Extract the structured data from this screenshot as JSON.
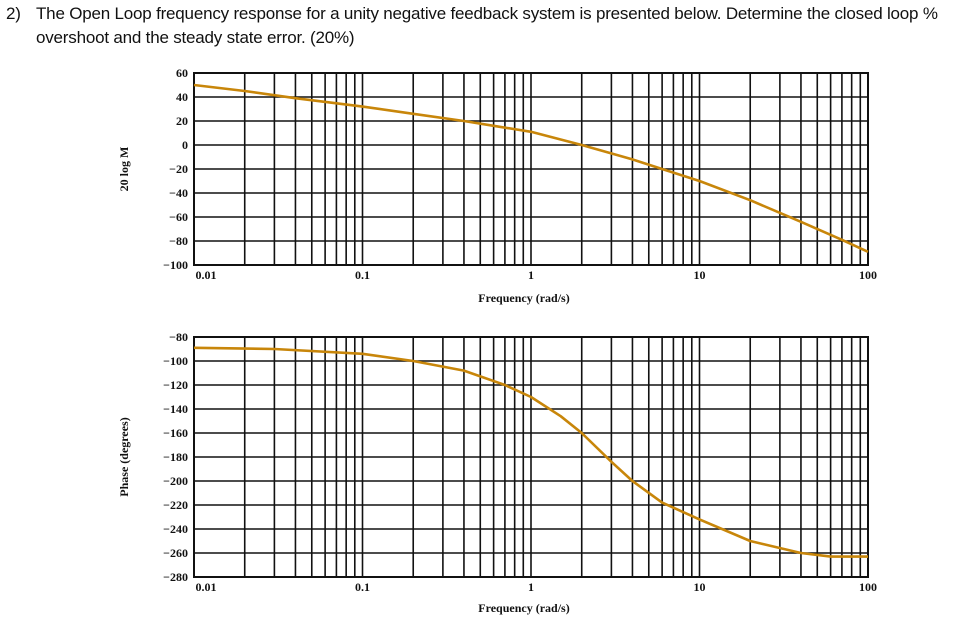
{
  "question": {
    "number": "2)",
    "text": "The Open Loop frequency response for a unity negative feedback system is presented below. Determine the closed loop % overshoot and the steady state error. (20%)"
  },
  "chart_data": [
    {
      "type": "line",
      "xscale": "log",
      "xlabel": "Frequency (rad/s)",
      "ylabel": "20 log M",
      "xlim": [
        0.01,
        100
      ],
      "ylim": [
        -100,
        60
      ],
      "xticks": [
        "0.01",
        "0.1",
        "1",
        "10",
        "100"
      ],
      "yticks": [
        "60",
        "40",
        "20",
        "0",
        "−20",
        "−40",
        "−60",
        "−80",
        "−100"
      ],
      "grid": true,
      "line_color": "#c8860a",
      "x": [
        0.01,
        0.02,
        0.04,
        0.1,
        0.2,
        0.4,
        0.6,
        1,
        2,
        4,
        6,
        10,
        20,
        40,
        70,
        100
      ],
      "y": [
        50,
        45,
        39,
        32,
        26,
        20,
        16,
        11,
        0,
        -12,
        -20,
        -30,
        -46,
        -64,
        -79,
        -89
      ]
    },
    {
      "type": "line",
      "xscale": "log",
      "xlabel": "Frequency (rad/s)",
      "ylabel": "Phase (degrees)",
      "xlim": [
        0.01,
        100
      ],
      "ylim": [
        -280,
        -80
      ],
      "xticks": [
        "0.01",
        "0.1",
        "1",
        "10",
        "100"
      ],
      "yticks": [
        "−80",
        "−100",
        "−120",
        "−140",
        "−160",
        "−180",
        "−200",
        "−220",
        "−240",
        "−260",
        "−280"
      ],
      "grid": true,
      "line_color": "#c8860a",
      "x": [
        0.01,
        0.03,
        0.1,
        0.2,
        0.4,
        0.7,
        1,
        1.5,
        2,
        3,
        4,
        6,
        10,
        20,
        40,
        60,
        100
      ],
      "y": [
        -89,
        -90,
        -94,
        -100,
        -108,
        -120,
        -130,
        -146,
        -160,
        -184,
        -200,
        -218,
        -232,
        -250,
        -260,
        -263,
        -263
      ]
    }
  ]
}
